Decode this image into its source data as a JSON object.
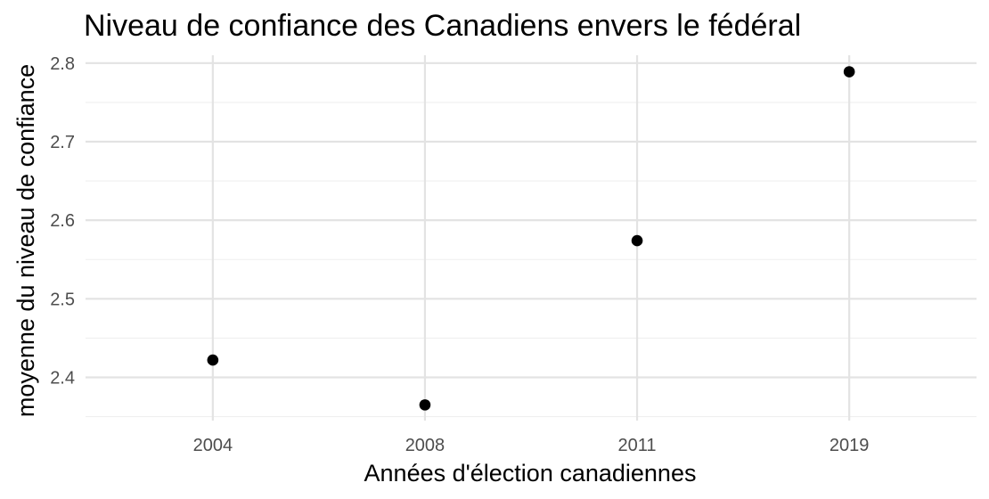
{
  "chart_data": {
    "type": "scatter",
    "title": "Niveau de confiance des Canadiens envers le fédéral",
    "xlabel": "Années d'élection canadiennes",
    "ylabel": "moyenne du niveau de confiance",
    "categories": [
      "2004",
      "2008",
      "2011",
      "2019"
    ],
    "values": [
      2.422,
      2.365,
      2.574,
      2.789
    ],
    "y_ticks": [
      2.4,
      2.5,
      2.6,
      2.7,
      2.8
    ],
    "y_tick_labels": [
      "2.4",
      "2.5",
      "2.6",
      "2.7",
      "2.8"
    ],
    "ylim": [
      2.345,
      2.81
    ],
    "grid": true,
    "legend": "none",
    "point_color": "#000000",
    "grid_color": "#e3e3e3"
  }
}
